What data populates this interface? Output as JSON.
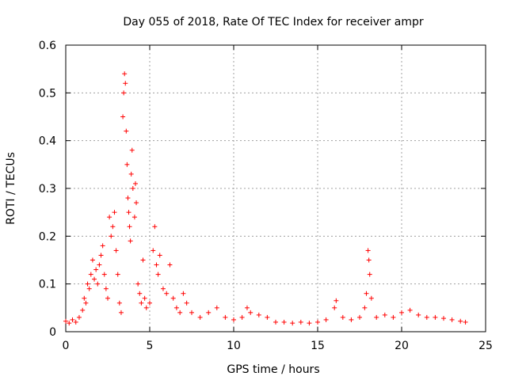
{
  "chart_data": {
    "type": "scatter",
    "title": "Day 055 of 2018, Rate Of TEC Index for receiver ampr",
    "xlabel": "GPS time / hours",
    "ylabel": "ROTI / TECUs",
    "xlim": [
      0,
      25
    ],
    "ylim": [
      0,
      0.6
    ],
    "xticks": [
      0,
      5,
      10,
      15,
      20,
      25
    ],
    "yticks": [
      0,
      0.1,
      0.2,
      0.3,
      0.4,
      0.5,
      0.6
    ],
    "xtick_labels": [
      "0",
      "5",
      "10",
      "15",
      "20",
      "25"
    ],
    "ytick_labels": [
      "0",
      "0.1",
      "0.2",
      "0.3",
      "0.4",
      "0.5",
      "0.6"
    ],
    "grid": true,
    "marker": "+",
    "color": "#ff0000",
    "series": [
      {
        "name": "ROTI",
        "points": [
          [
            0.0,
            0.022
          ],
          [
            0.2,
            0.018
          ],
          [
            0.4,
            0.025
          ],
          [
            0.6,
            0.02
          ],
          [
            0.8,
            0.03
          ],
          [
            1.0,
            0.045
          ],
          [
            1.1,
            0.07
          ],
          [
            1.2,
            0.06
          ],
          [
            1.3,
            0.1
          ],
          [
            1.4,
            0.09
          ],
          [
            1.5,
            0.12
          ],
          [
            1.6,
            0.15
          ],
          [
            1.7,
            0.11
          ],
          [
            1.8,
            0.13
          ],
          [
            1.9,
            0.1
          ],
          [
            2.0,
            0.14
          ],
          [
            2.1,
            0.16
          ],
          [
            2.2,
            0.18
          ],
          [
            2.3,
            0.12
          ],
          [
            2.4,
            0.09
          ],
          [
            2.5,
            0.07
          ],
          [
            2.6,
            0.24
          ],
          [
            2.7,
            0.2
          ],
          [
            2.8,
            0.22
          ],
          [
            2.9,
            0.25
          ],
          [
            3.0,
            0.17
          ],
          [
            3.1,
            0.12
          ],
          [
            3.2,
            0.06
          ],
          [
            3.3,
            0.04
          ],
          [
            3.4,
            0.45
          ],
          [
            3.45,
            0.5
          ],
          [
            3.5,
            0.54
          ],
          [
            3.55,
            0.52
          ],
          [
            3.6,
            0.42
          ],
          [
            3.65,
            0.35
          ],
          [
            3.7,
            0.28
          ],
          [
            3.75,
            0.25
          ],
          [
            3.8,
            0.22
          ],
          [
            3.85,
            0.19
          ],
          [
            3.9,
            0.33
          ],
          [
            3.95,
            0.38
          ],
          [
            4.0,
            0.3
          ],
          [
            4.1,
            0.24
          ],
          [
            4.15,
            0.31
          ],
          [
            4.2,
            0.27
          ],
          [
            4.3,
            0.1
          ],
          [
            4.4,
            0.08
          ],
          [
            4.5,
            0.06
          ],
          [
            4.6,
            0.15
          ],
          [
            4.7,
            0.07
          ],
          [
            4.8,
            0.05
          ],
          [
            5.0,
            0.06
          ],
          [
            5.2,
            0.17
          ],
          [
            5.3,
            0.22
          ],
          [
            5.4,
            0.14
          ],
          [
            5.5,
            0.12
          ],
          [
            5.6,
            0.16
          ],
          [
            5.8,
            0.09
          ],
          [
            6.0,
            0.08
          ],
          [
            6.2,
            0.14
          ],
          [
            6.4,
            0.07
          ],
          [
            6.6,
            0.05
          ],
          [
            6.8,
            0.04
          ],
          [
            7.0,
            0.08
          ],
          [
            7.2,
            0.06
          ],
          [
            7.5,
            0.04
          ],
          [
            8.0,
            0.03
          ],
          [
            8.5,
            0.04
          ],
          [
            9.0,
            0.05
          ],
          [
            9.5,
            0.03
          ],
          [
            10.0,
            0.025
          ],
          [
            10.5,
            0.03
          ],
          [
            10.8,
            0.05
          ],
          [
            11.0,
            0.04
          ],
          [
            11.5,
            0.035
          ],
          [
            12.0,
            0.03
          ],
          [
            12.5,
            0.02
          ],
          [
            13.0,
            0.02
          ],
          [
            13.5,
            0.018
          ],
          [
            14.0,
            0.02
          ],
          [
            14.5,
            0.018
          ],
          [
            15.0,
            0.02
          ],
          [
            15.5,
            0.025
          ],
          [
            16.0,
            0.05
          ],
          [
            16.1,
            0.065
          ],
          [
            16.5,
            0.03
          ],
          [
            17.0,
            0.025
          ],
          [
            17.5,
            0.03
          ],
          [
            17.8,
            0.05
          ],
          [
            17.9,
            0.08
          ],
          [
            18.0,
            0.17
          ],
          [
            18.05,
            0.15
          ],
          [
            18.1,
            0.12
          ],
          [
            18.2,
            0.07
          ],
          [
            18.5,
            0.03
          ],
          [
            19.0,
            0.035
          ],
          [
            19.5,
            0.03
          ],
          [
            20.0,
            0.04
          ],
          [
            20.5,
            0.045
          ],
          [
            21.0,
            0.035
          ],
          [
            21.5,
            0.03
          ],
          [
            22.0,
            0.03
          ],
          [
            22.5,
            0.028
          ],
          [
            23.0,
            0.025
          ],
          [
            23.5,
            0.022
          ],
          [
            23.8,
            0.02
          ]
        ]
      }
    ]
  }
}
